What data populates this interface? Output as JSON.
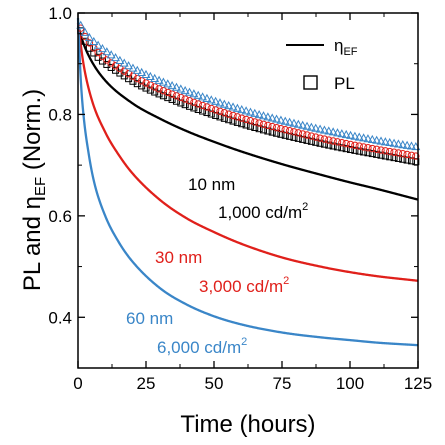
{
  "chart_data": {
    "type": "line",
    "title": "",
    "xlabel": "Time (hours)",
    "ylabel": {
      "prefix": "PL and ",
      "symbol": "η",
      "sub": "EF",
      "suffix": " (Norm.)"
    },
    "xlim": [
      0,
      125
    ],
    "ylim": [
      0.3,
      1.0
    ],
    "xticks": [
      0,
      25,
      50,
      75,
      100,
      125
    ],
    "yticks": [
      0.4,
      0.6,
      0.8,
      1.0
    ],
    "yminor": [
      0.3,
      0.5,
      0.7,
      0.9
    ],
    "grid": false,
    "legend": {
      "position": "top-right",
      "entries": [
        {
          "symbol": "η",
          "sub": "EF",
          "marker": "line"
        },
        {
          "label": "PL",
          "marker": "open-square"
        }
      ]
    },
    "series": [
      {
        "color": "#000000",
        "annotation_line1": "10 nm",
        "annotation_line2_value": "1,000 cd/m",
        "annotation_line2_sup": "2",
        "eta_ef": {
          "x": [
            0,
            2,
            5,
            10,
            20,
            30,
            40,
            50,
            60,
            75,
            90,
            100,
            110,
            125
          ],
          "y": [
            0.975,
            0.94,
            0.905,
            0.867,
            0.822,
            0.792,
            0.767,
            0.746,
            0.727,
            0.702,
            0.68,
            0.666,
            0.653,
            0.632
          ]
        },
        "pl": {
          "x": [
            1,
            3,
            6,
            10,
            15,
            20,
            25,
            30,
            40,
            50,
            60,
            70,
            80,
            90,
            100,
            110,
            120,
            125
          ],
          "y": [
            0.965,
            0.94,
            0.92,
            0.901,
            0.883,
            0.866,
            0.852,
            0.84,
            0.818,
            0.799,
            0.782,
            0.767,
            0.754,
            0.742,
            0.731,
            0.721,
            0.711,
            0.706
          ]
        }
      },
      {
        "color": "#e0201b",
        "annotation_line1": "30 nm",
        "annotation_line2_value": "3,000 cd/m",
        "annotation_line2_sup": "2",
        "eta_ef": {
          "x": [
            0,
            2,
            5,
            10,
            15,
            20,
            30,
            40,
            50,
            60,
            75,
            90,
            100,
            110,
            125
          ],
          "y": [
            0.98,
            0.9,
            0.83,
            0.765,
            0.72,
            0.684,
            0.632,
            0.595,
            0.568,
            0.545,
            0.518,
            0.499,
            0.489,
            0.481,
            0.472
          ]
        },
        "pl": {
          "x": [
            1,
            3,
            6,
            10,
            15,
            20,
            25,
            30,
            40,
            50,
            60,
            70,
            80,
            90,
            100,
            110,
            120,
            125
          ],
          "y": [
            0.97,
            0.95,
            0.93,
            0.91,
            0.892,
            0.876,
            0.862,
            0.85,
            0.829,
            0.81,
            0.793,
            0.778,
            0.765,
            0.752,
            0.741,
            0.731,
            0.722,
            0.717
          ]
        }
      },
      {
        "color": "#3a86c8",
        "annotation_line1": "60 nm",
        "annotation_line2_value": "6,000 cd/m",
        "annotation_line2_sup": "2",
        "eta_ef": {
          "x": [
            0,
            1,
            2,
            4,
            6,
            10,
            15,
            20,
            30,
            40,
            50,
            60,
            75,
            90,
            100,
            110,
            125
          ],
          "y": [
            0.99,
            0.87,
            0.8,
            0.72,
            0.665,
            0.6,
            0.548,
            0.51,
            0.458,
            0.425,
            0.402,
            0.386,
            0.37,
            0.36,
            0.355,
            0.35,
            0.345
          ]
        },
        "pl": {
          "x": [
            1,
            3,
            6,
            10,
            15,
            20,
            25,
            30,
            40,
            50,
            60,
            70,
            80,
            90,
            100,
            110,
            120,
            125
          ],
          "y": [
            0.975,
            0.958,
            0.942,
            0.925,
            0.907,
            0.891,
            0.878,
            0.866,
            0.845,
            0.826,
            0.809,
            0.794,
            0.781,
            0.769,
            0.758,
            0.748,
            0.739,
            0.735
          ]
        }
      }
    ]
  }
}
